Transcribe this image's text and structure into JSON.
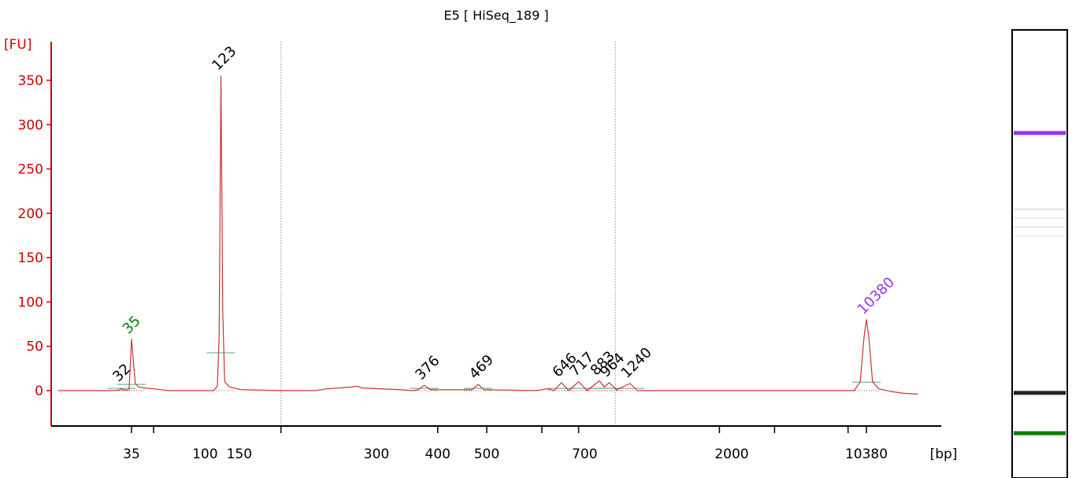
{
  "chart_data": {
    "type": "line",
    "title": "E5  [ HiSeq_189 ]",
    "ylabel": "[FU]",
    "xlabel": "[bp]",
    "ylim": [
      -45,
      385
    ],
    "yticks": [
      0,
      50,
      100,
      150,
      200,
      250,
      300,
      350
    ],
    "xtick_labels": [
      {
        "label": "35",
        "seg": 0.0
      },
      {
        "label": "100",
        "seg": 0.6
      },
      {
        "label": "150",
        "seg": 0.88
      },
      {
        "label": "300",
        "seg": 2.0
      },
      {
        "label": "400",
        "seg": 2.5
      },
      {
        "label": "500",
        "seg": 2.9
      },
      {
        "label": "700",
        "seg": 3.7
      },
      {
        "label": "2000",
        "seg": 4.9
      },
      {
        "label": "10380",
        "seg": 6.0
      }
    ],
    "xtick_marks": [
      0.0,
      0.18,
      1.22,
      2.5,
      2.9,
      3.35,
      3.65,
      4.8,
      5.25,
      5.85,
      6.0
    ],
    "dotted_lines": [
      1.22,
      3.95
    ],
    "peaks": [
      {
        "label": "32",
        "x": -0.08,
        "height": 4,
        "width": 0.02,
        "color": "#000000"
      },
      {
        "label": "35",
        "x": 0.0,
        "height": 58,
        "width": 0.025,
        "color": "#008000"
      },
      {
        "label": "123",
        "x": 0.73,
        "height": 355,
        "width": 0.028,
        "color": "#000000"
      },
      {
        "label": "376",
        "x": 2.39,
        "height": 6,
        "width": 0.03,
        "color": "#000000"
      },
      {
        "label": "469",
        "x": 2.83,
        "height": 7,
        "width": 0.03,
        "color": "#000000"
      },
      {
        "label": "646",
        "x": 3.51,
        "height": 9,
        "width": 0.028,
        "color": "#000000"
      },
      {
        "label": "717",
        "x": 3.65,
        "height": 10,
        "width": 0.028,
        "color": "#000000"
      },
      {
        "label": "883",
        "x": 3.82,
        "height": 11,
        "width": 0.028,
        "color": "#000000"
      },
      {
        "label": "964",
        "x": 3.9,
        "height": 9,
        "width": 0.025,
        "color": "#000000"
      },
      {
        "label": "1240",
        "x": 4.07,
        "height": 8,
        "width": 0.03,
        "color": "#000000"
      },
      {
        "label": "10380",
        "x": 6.0,
        "height": 80,
        "width": 0.04,
        "color": "#9933ff"
      }
    ],
    "series": [
      {
        "color": "#cc3333",
        "points": [
          [
            -0.6,
            0
          ],
          [
            -0.45,
            0
          ],
          [
            -0.3,
            0
          ],
          [
            -0.15,
            0
          ],
          [
            -0.1,
            0.5
          ],
          [
            -0.085,
            2.5
          ],
          [
            -0.075,
            1
          ],
          [
            -0.03,
            0.5
          ],
          [
            -0.02,
            2
          ],
          [
            0.0,
            58
          ],
          [
            0.03,
            8
          ],
          [
            0.06,
            4
          ],
          [
            0.1,
            3
          ],
          [
            0.18,
            2
          ],
          [
            0.3,
            0
          ],
          [
            0.6,
            0
          ],
          [
            0.67,
            0
          ],
          [
            0.7,
            5
          ],
          [
            0.715,
            60
          ],
          [
            0.73,
            355
          ],
          [
            0.745,
            90
          ],
          [
            0.76,
            10
          ],
          [
            0.8,
            4
          ],
          [
            0.9,
            1
          ],
          [
            1.22,
            0
          ],
          [
            1.5,
            0
          ],
          [
            1.6,
            2
          ],
          [
            1.8,
            4
          ],
          [
            1.84,
            5
          ],
          [
            1.88,
            3
          ],
          [
            2.2,
            1
          ],
          [
            2.3,
            0
          ],
          [
            2.34,
            1
          ],
          [
            2.39,
            6
          ],
          [
            2.44,
            1
          ],
          [
            2.78,
            1
          ],
          [
            2.83,
            7
          ],
          [
            2.88,
            1
          ],
          [
            3.3,
            0
          ],
          [
            3.4,
            2
          ],
          [
            3.45,
            0
          ],
          [
            3.51,
            9
          ],
          [
            3.57,
            0
          ],
          [
            3.65,
            10
          ],
          [
            3.72,
            0
          ],
          [
            3.82,
            11
          ],
          [
            3.86,
            4
          ],
          [
            3.9,
            9
          ],
          [
            3.96,
            1
          ],
          [
            4.07,
            8
          ],
          [
            4.13,
            0
          ],
          [
            4.7,
            0
          ],
          [
            5.5,
            0
          ],
          [
            5.9,
            0
          ],
          [
            5.95,
            10
          ],
          [
            5.98,
            60
          ],
          [
            6.0,
            80
          ],
          [
            6.02,
            60
          ],
          [
            6.05,
            10
          ],
          [
            6.1,
            2
          ],
          [
            6.2,
            -1
          ],
          [
            6.3,
            -3
          ],
          [
            6.42,
            -4
          ]
        ]
      }
    ]
  },
  "gel": {
    "bands": [
      {
        "position": 0.23,
        "color": "#9933ff",
        "strength": "strong"
      },
      {
        "position": 0.4,
        "color": "#dddddd",
        "strength": "faint"
      },
      {
        "position": 0.42,
        "color": "#e6e6e6",
        "strength": "faint"
      },
      {
        "position": 0.44,
        "color": "#e0e0e0",
        "strength": "faint"
      },
      {
        "position": 0.46,
        "color": "#eeeeee",
        "strength": "faint"
      },
      {
        "position": 0.81,
        "color": "#222222",
        "strength": "strong"
      },
      {
        "position": 0.9,
        "color": "#008000",
        "strength": "strong"
      }
    ]
  }
}
